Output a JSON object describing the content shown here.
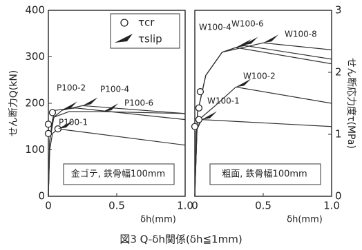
{
  "caption": "図3 Q-δh関係(δh≦1mm)",
  "chart_data": [
    {
      "type": "line",
      "xlabel": "δh(mm)",
      "ylabel": "せん断力Q(kN)",
      "note": "金ゴテ, 鉄骨幅100mm",
      "xlim": [
        0,
        1
      ],
      "ylim": [
        0,
        400
      ],
      "xticks": [
        0,
        0.5,
        {
          "value": 1,
          "label": "1.0"
        }
      ],
      "yticks": [
        0,
        100,
        200,
        300,
        400
      ],
      "legend": true,
      "series": [
        {
          "name": "P100-1",
          "color": "#333333",
          "x": [
            0,
            0.01,
            0.03,
            0.07,
            1
          ],
          "values": [
            0,
            100,
            135,
            145,
            110
          ]
        },
        {
          "name": "P100-2",
          "color": "#333333",
          "x": [
            0,
            0.01,
            0.03,
            0.05,
            0.2,
            1
          ],
          "values": [
            0,
            120,
            165,
            185,
            190,
            165
          ]
        },
        {
          "name": "P100-4",
          "color": "#333333",
          "x": [
            0,
            0.01,
            0.04,
            0.1,
            0.25,
            1
          ],
          "values": [
            0,
            120,
            170,
            185,
            195,
            178
          ]
        },
        {
          "name": "P100-6",
          "color": "#333333",
          "x": [
            0,
            0.01,
            0.04,
            0.15,
            0.4,
            1
          ],
          "values": [
            0,
            120,
            170,
            182,
            182,
            178
          ]
        }
      ],
      "markers": [
        {
          "name": "τcr",
          "shape": "circle",
          "x": [
            0,
            0,
            0.03,
            0.07
          ],
          "values": [
            135,
            155,
            180,
            145
          ]
        },
        {
          "name": "τslip",
          "shape": "triangle",
          "x": [
            0.07,
            0.1,
            0.25,
            0.4
          ],
          "values": [
            145,
            186,
            195,
            182
          ]
        }
      ]
    },
    {
      "type": "line",
      "xlabel": "δh(mm)",
      "y2label": "せん断応力度τ(MPa)",
      "note": "粗面, 鉄骨幅100mm",
      "xlim": [
        0,
        1
      ],
      "ylim": [
        0,
        400
      ],
      "y2lim": [
        0,
        3
      ],
      "xticks": [
        0,
        0.5,
        {
          "value": 1,
          "label": "1.0"
        }
      ],
      "y2ticks": [
        0,
        1,
        2,
        3
      ],
      "series": [
        {
          "name": "W100-1",
          "color": "#333333",
          "x": [
            0,
            0.01,
            0.05,
            1
          ],
          "values": [
            0,
            140,
            165,
            150
          ]
        },
        {
          "name": "W100-2",
          "color": "#333333",
          "x": [
            0,
            0.01,
            0.05,
            0.15,
            0.3,
            1
          ],
          "values": [
            0,
            140,
            170,
            195,
            235,
            200
          ]
        },
        {
          "name": "W100-4",
          "color": "#333333",
          "x": [
            0,
            0.02,
            0.08,
            0.2,
            0.3,
            1
          ],
          "values": [
            0,
            180,
            260,
            310,
            320,
            285
          ]
        },
        {
          "name": "W100-6",
          "color": "#333333",
          "x": [
            0,
            0.02,
            0.08,
            0.2,
            0.35,
            1
          ],
          "values": [
            0,
            180,
            260,
            310,
            325,
            295
          ]
        },
        {
          "name": "W100-8",
          "color": "#333333",
          "x": [
            0,
            0.02,
            0.08,
            0.2,
            0.5,
            1
          ],
          "values": [
            0,
            180,
            260,
            310,
            330,
            315
          ]
        }
      ],
      "markers": [
        {
          "shape": "circle",
          "x": [
            0,
            0.03,
            0.04,
            0.03
          ],
          "values": [
            150,
            190,
            225,
            165
          ]
        },
        {
          "shape": "triangle",
          "x": [
            0.05,
            0.3,
            0.3,
            0.35,
            0.5
          ],
          "values": [
            165,
            235,
            320,
            325,
            330
          ]
        }
      ]
    }
  ]
}
